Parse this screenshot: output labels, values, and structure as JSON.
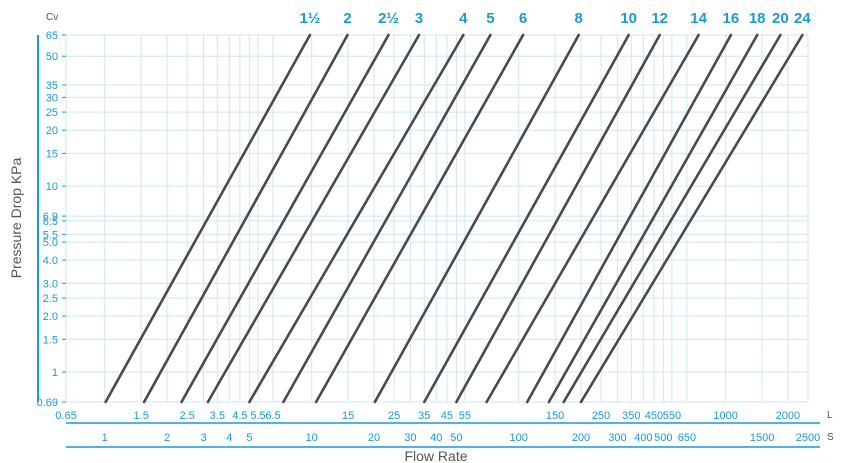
{
  "chart_data": {
    "type": "line",
    "y_scale": "log",
    "x_scale": "log",
    "ylabel": "Pressure Drop KPa",
    "xlabel": "Flow Rate",
    "cv_label": "Cv",
    "upper_axis_unit": "L",
    "lower_axis_unit": "S",
    "ylim": [
      0.69,
      65
    ],
    "y_ticks": [
      {
        "v": 65,
        "label": "65"
      },
      {
        "v": 50,
        "label": "50"
      },
      {
        "v": 35,
        "label": "35"
      },
      {
        "v": 30,
        "label": "30"
      },
      {
        "v": 25,
        "label": "25"
      },
      {
        "v": 20,
        "label": "20"
      },
      {
        "v": 15,
        "label": "15"
      },
      {
        "v": 10,
        "label": "10"
      },
      {
        "v": 6.9,
        "label": "6.9"
      },
      {
        "v": 6.5,
        "label": "6.5"
      },
      {
        "v": 5.5,
        "label": "5.5"
      },
      {
        "v": 5.0,
        "label": "5.0"
      },
      {
        "v": 4.0,
        "label": "4.0"
      },
      {
        "v": 3.0,
        "label": "3.0"
      },
      {
        "v": 2.5,
        "label": "2.5"
      },
      {
        "v": 2.0,
        "label": "2.0"
      },
      {
        "v": 1.5,
        "label": "1.5"
      },
      {
        "v": 1,
        "label": "1"
      },
      {
        "v": 0.69,
        "label": "0.69"
      }
    ],
    "upper_x_ticks": [
      {
        "v": 0.65,
        "label": "0.65"
      },
      {
        "v": 1.5,
        "label": "1.5"
      },
      {
        "v": 2.5,
        "label": "2.5"
      },
      {
        "v": 3.5,
        "label": "3.5"
      },
      {
        "v": 4.5,
        "label": "4.5"
      },
      {
        "v": 5.5,
        "label": "5.5"
      },
      {
        "v": 6.5,
        "label": "6.5"
      },
      {
        "v": 15,
        "label": "15"
      },
      {
        "v": 25,
        "label": "25"
      },
      {
        "v": 35,
        "label": "35"
      },
      {
        "v": 45,
        "label": "45"
      },
      {
        "v": 55,
        "label": "55"
      },
      {
        "v": 150,
        "label": "150"
      },
      {
        "v": 250,
        "label": "250"
      },
      {
        "v": 350,
        "label": "350"
      },
      {
        "v": 450,
        "label": "450"
      },
      {
        "v": 550,
        "label": "550"
      },
      {
        "v": 1000,
        "label": "1000"
      },
      {
        "v": 2000,
        "label": "2000"
      }
    ],
    "lower_x_ticks": [
      {
        "v": 1,
        "label": "1"
      },
      {
        "v": 2,
        "label": "2"
      },
      {
        "v": 3,
        "label": "3"
      },
      {
        "v": 4,
        "label": "4"
      },
      {
        "v": 5,
        "label": "5"
      },
      {
        "v": 10,
        "label": "10"
      },
      {
        "v": 20,
        "label": "20"
      },
      {
        "v": 30,
        "label": "30"
      },
      {
        "v": 40,
        "label": "40"
      },
      {
        "v": 50,
        "label": "50"
      },
      {
        "v": 100,
        "label": "100"
      },
      {
        "v": 200,
        "label": "200"
      },
      {
        "v": 300,
        "label": "300"
      },
      {
        "v": 400,
        "label": "400"
      },
      {
        "v": 500,
        "label": "500"
      },
      {
        "v": 650,
        "label": "650"
      },
      {
        "v": 1500,
        "label": "1500"
      },
      {
        "v": 2500,
        "label": "2500"
      }
    ],
    "series": [
      {
        "name": "1½",
        "x_at_ymin": 1.01,
        "x_at_ymax": 9.8
      },
      {
        "name": "2",
        "x_at_ymin": 1.55,
        "x_at_ymax": 14.9
      },
      {
        "name": "2½",
        "x_at_ymin": 2.35,
        "x_at_ymax": 23.5
      },
      {
        "name": "3",
        "x_at_ymin": 3.15,
        "x_at_ymax": 33
      },
      {
        "name": "4",
        "x_at_ymin": 5.0,
        "x_at_ymax": 54
      },
      {
        "name": "5",
        "x_at_ymin": 7.3,
        "x_at_ymax": 73
      },
      {
        "name": "6",
        "x_at_ymin": 10.5,
        "x_at_ymax": 105
      },
      {
        "name": "8",
        "x_at_ymin": 20.2,
        "x_at_ymax": 195
      },
      {
        "name": "10",
        "x_at_ymin": 35,
        "x_at_ymax": 340
      },
      {
        "name": "12",
        "x_at_ymin": 50,
        "x_at_ymax": 480
      },
      {
        "name": "14",
        "x_at_ymin": 70,
        "x_at_ymax": 740
      },
      {
        "name": "16",
        "x_at_ymin": 110,
        "x_at_ymax": 1060
      },
      {
        "name": "18",
        "x_at_ymin": 140,
        "x_at_ymax": 1420
      },
      {
        "name": "20",
        "x_at_ymin": 165,
        "x_at_ymax": 1840
      },
      {
        "name": "24",
        "x_at_ymin": 200,
        "x_at_ymax": 2350
      }
    ]
  }
}
